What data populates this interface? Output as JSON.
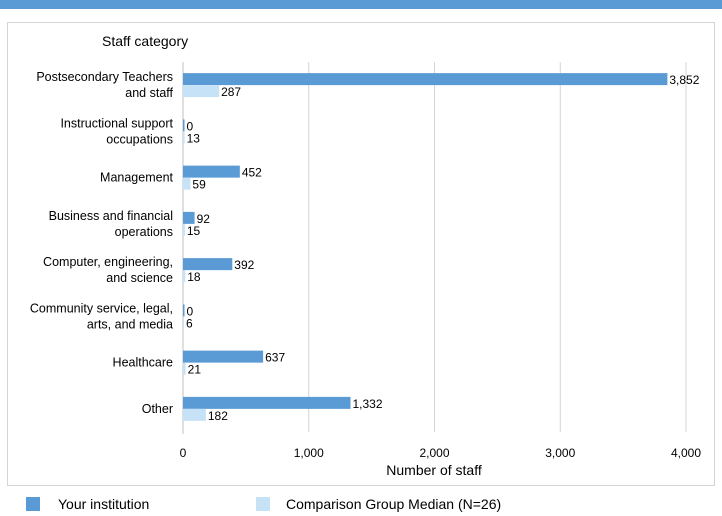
{
  "chart_data": {
    "type": "bar",
    "orientation": "horizontal",
    "category_header": "Staff category",
    "categories": [
      [
        "Postsecondary Teachers",
        "and staff"
      ],
      [
        "Instructional support",
        "occupations"
      ],
      [
        "Management"
      ],
      [
        "Business and financial",
        "operations"
      ],
      [
        "Computer, engineering,",
        "and science"
      ],
      [
        "Community service, legal,",
        "arts, and media"
      ],
      [
        "Healthcare"
      ],
      [
        "Other"
      ]
    ],
    "series": [
      {
        "name": "Your institution",
        "color": "#5b9bd5",
        "values": [
          3852,
          0,
          452,
          92,
          392,
          0,
          637,
          1332
        ],
        "labels": [
          "3,852",
          "0",
          "452",
          "92",
          "392",
          "0",
          "637",
          "1,332"
        ]
      },
      {
        "name": "Comparison Group Median (N=26)",
        "color": "#c6e2f7",
        "values": [
          287,
          13,
          59,
          15,
          18,
          6,
          21,
          182
        ],
        "labels": [
          "287",
          "13",
          "59",
          "15",
          "18",
          "6",
          "21",
          "182"
        ]
      }
    ],
    "xlabel": "Number of staff",
    "xlim": [
      0,
      4000
    ],
    "xticks": [
      0,
      1000,
      2000,
      3000,
      4000
    ],
    "xtick_labels": [
      "0",
      "1,000",
      "2,000",
      "3,000",
      "4,000"
    ],
    "grid": true,
    "legend_position": "bottom"
  }
}
